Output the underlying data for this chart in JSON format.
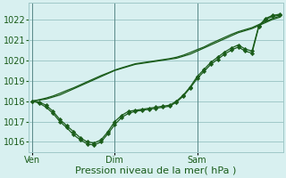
{
  "background_color": "#d8f0f0",
  "grid_color": "#a0c8c8",
  "line_color": "#1a5c1a",
  "marker_color": "#1a5c1a",
  "xlabel": "Pression niveau de la mer( hPa )",
  "xlabel_fontsize": 8,
  "ylim": [
    1015.5,
    1022.8
  ],
  "yticks": [
    1016,
    1017,
    1018,
    1019,
    1020,
    1021,
    1022
  ],
  "xtick_labels": [
    "Ven",
    "Dim",
    "Sam"
  ],
  "xtick_positions": [
    0,
    12,
    24
  ],
  "total_points": 37,
  "series_with_markers": [
    [
      1018.0,
      1017.95,
      1017.8,
      1017.5,
      1017.1,
      1016.8,
      1016.5,
      1016.2,
      1016.0,
      1015.95,
      1016.1,
      1016.5,
      1017.0,
      1017.3,
      1017.5,
      1017.55,
      1017.6,
      1017.65,
      1017.7,
      1017.75,
      1017.8,
      1018.0,
      1018.3,
      1018.7,
      1019.2,
      1019.55,
      1019.9,
      1020.15,
      1020.4,
      1020.6,
      1020.75,
      1020.55,
      1020.45,
      1021.7,
      1022.05,
      1022.2,
      1022.25
    ],
    [
      1018.0,
      1017.9,
      1017.7,
      1017.4,
      1017.0,
      1016.7,
      1016.35,
      1016.1,
      1015.9,
      1015.85,
      1016.0,
      1016.4,
      1016.85,
      1017.2,
      1017.4,
      1017.5,
      1017.55,
      1017.6,
      1017.65,
      1017.7,
      1017.75,
      1017.95,
      1018.25,
      1018.65,
      1019.1,
      1019.45,
      1019.8,
      1020.05,
      1020.3,
      1020.5,
      1020.65,
      1020.45,
      1020.35,
      1021.65,
      1022.0,
      1022.15,
      1022.2
    ]
  ],
  "series_plain": [
    [
      1018.0,
      1018.05,
      1018.1,
      1018.2,
      1018.3,
      1018.45,
      1018.6,
      1018.75,
      1018.9,
      1019.05,
      1019.2,
      1019.35,
      1019.5,
      1019.6,
      1019.7,
      1019.8,
      1019.85,
      1019.9,
      1019.95,
      1020.0,
      1020.05,
      1020.1,
      1020.2,
      1020.3,
      1020.45,
      1020.6,
      1020.75,
      1020.9,
      1021.05,
      1021.2,
      1021.35,
      1021.45,
      1021.55,
      1021.7,
      1021.85,
      1022.0,
      1022.1
    ],
    [
      1018.0,
      1018.07,
      1018.15,
      1018.25,
      1018.38,
      1018.52,
      1018.65,
      1018.8,
      1018.95,
      1019.1,
      1019.25,
      1019.38,
      1019.52,
      1019.63,
      1019.73,
      1019.83,
      1019.88,
      1019.93,
      1019.98,
      1020.03,
      1020.08,
      1020.15,
      1020.25,
      1020.38,
      1020.52,
      1020.65,
      1020.82,
      1020.97,
      1021.12,
      1021.27,
      1021.4,
      1021.5,
      1021.6,
      1021.75,
      1021.9,
      1022.05,
      1022.15
    ]
  ],
  "marker_style": "D",
  "marker_size": 2.2,
  "linewidth": 0.9
}
